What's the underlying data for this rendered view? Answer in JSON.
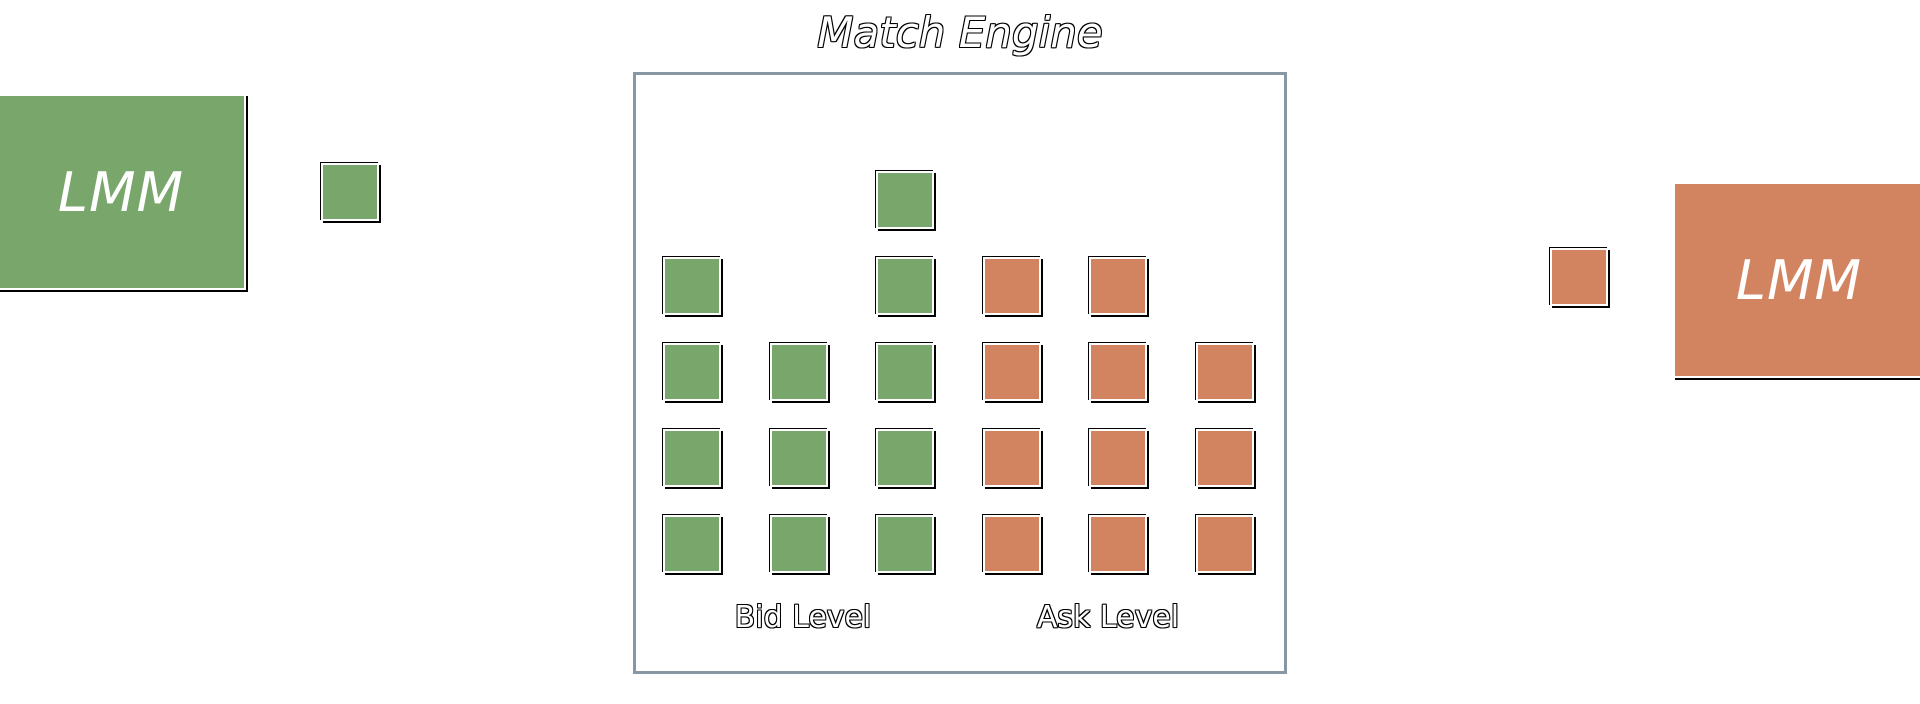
{
  "engine": {
    "title": "Match Engine",
    "bid_label": "Bid Level",
    "ask_label": "Ask Level"
  },
  "left_participant": {
    "label": "LMM",
    "side": "bid"
  },
  "right_participant": {
    "label": "LMM",
    "side": "ask"
  },
  "colors": {
    "bid": "#79a66a",
    "ask": "#d28461",
    "frame": "#8797a3"
  },
  "order_book": {
    "bid_levels": [
      {
        "orders": 4
      },
      {
        "orders": 3
      },
      {
        "orders": 5
      }
    ],
    "ask_levels": [
      {
        "orders": 4
      },
      {
        "orders": 4
      },
      {
        "orders": 3
      }
    ]
  },
  "incoming_orders": [
    {
      "side": "bid",
      "from": "left_participant"
    },
    {
      "side": "ask",
      "from": "right_participant"
    }
  ]
}
